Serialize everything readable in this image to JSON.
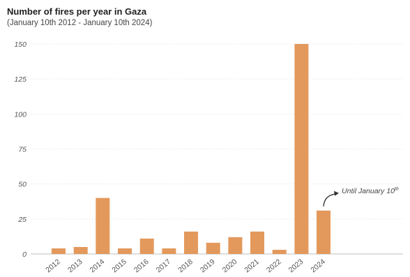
{
  "title": "Number of fires per year in Gaza",
  "subtitle": "(January 10th 2012 - January 10th 2024)",
  "colors": {
    "bar": "#E3995C",
    "grid": "#d9d9d9",
    "axis": "#bfbfbf"
  },
  "annotation": {
    "text": "Until January 10",
    "superscript": "th",
    "target_category": "2024"
  },
  "chart_data": {
    "type": "bar",
    "title": "Number of fires per year in Gaza",
    "subtitle": "(January 10th 2012 - January 10th 2024)",
    "xlabel": "",
    "ylabel": "",
    "categories": [
      "2012",
      "2013",
      "2014",
      "2015",
      "2016",
      "2017",
      "2018",
      "2019",
      "2020",
      "2021",
      "2022",
      "2023",
      "2024"
    ],
    "values": [
      4,
      5,
      40,
      4,
      11,
      4,
      16,
      8,
      12,
      16,
      3,
      150,
      31
    ],
    "ylim": [
      0,
      150
    ],
    "yticks": [
      0,
      25,
      50,
      75,
      100,
      125,
      150
    ],
    "grid": true,
    "legend": "none"
  }
}
